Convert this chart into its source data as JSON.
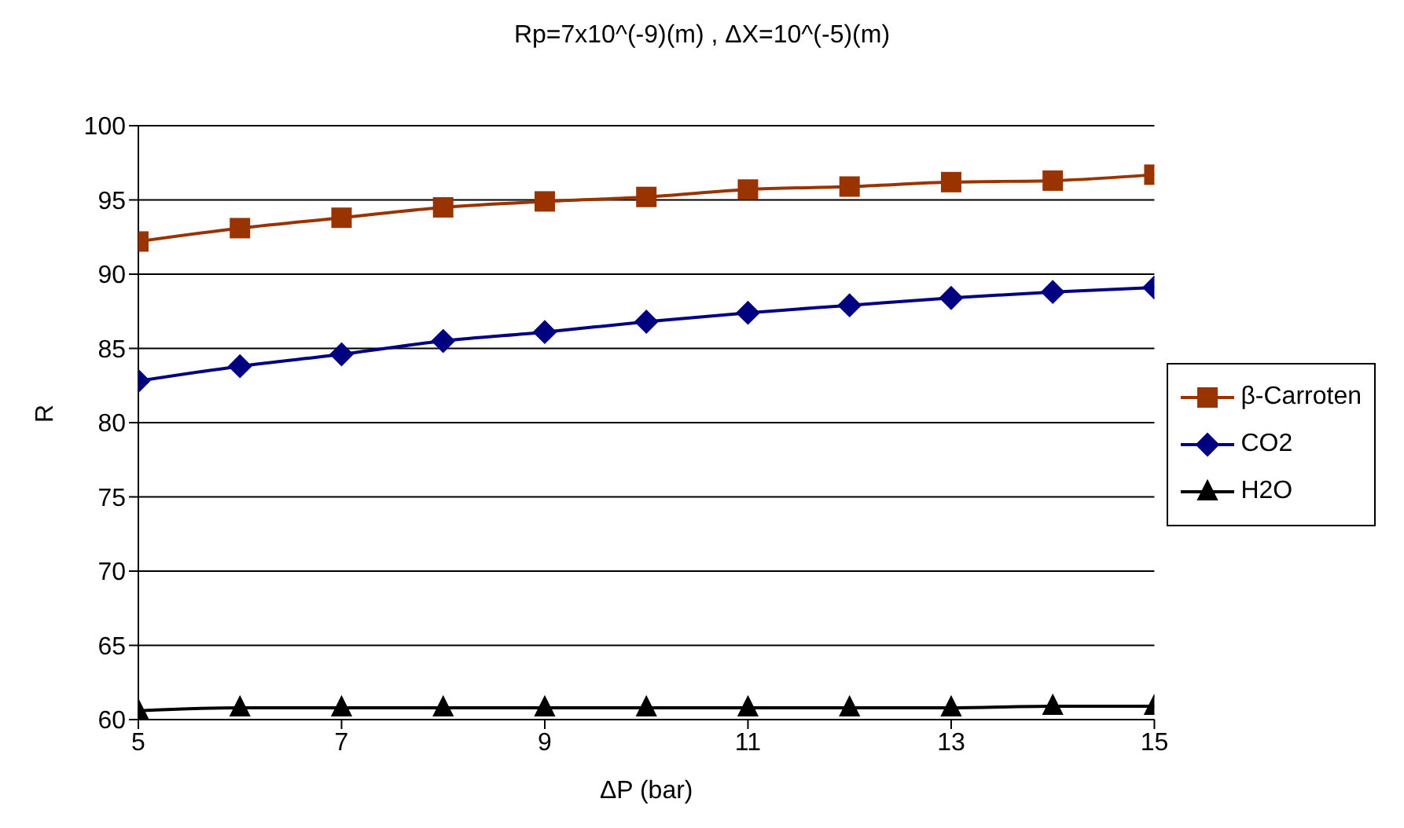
{
  "chart_data": {
    "type": "line",
    "title": "Rp=7x10^(-9)(m) , ΔX=10^(-5)(m)",
    "xlabel": "ΔP (bar)",
    "ylabel": "R",
    "x": [
      5,
      6,
      7,
      8,
      9,
      10,
      11,
      12,
      13,
      14,
      15
    ],
    "series": [
      {
        "name": "β-Carroten",
        "color": "#993300",
        "marker": "square",
        "values": [
          92.2,
          93.1,
          93.8,
          94.5,
          94.9,
          95.2,
          95.7,
          95.9,
          96.2,
          96.3,
          96.7
        ]
      },
      {
        "name": "CO2",
        "color": "#000080",
        "marker": "diamond",
        "values": [
          82.8,
          83.8,
          84.6,
          85.5,
          86.1,
          86.8,
          87.4,
          87.9,
          88.4,
          88.8,
          89.1
        ]
      },
      {
        "name": "H2O",
        "color": "#000000",
        "marker": "triangle",
        "values": [
          60.6,
          60.8,
          60.8,
          60.8,
          60.8,
          60.8,
          60.8,
          60.8,
          60.8,
          60.9,
          60.9
        ]
      }
    ],
    "xlim": [
      5,
      15
    ],
    "xticks": [
      5,
      7,
      9,
      11,
      13,
      15
    ],
    "ylim": [
      60,
      100
    ],
    "yticks": [
      60,
      65,
      70,
      75,
      80,
      85,
      90,
      95,
      100
    ],
    "grid": "y",
    "legend": "right",
    "line_style": "solid"
  }
}
